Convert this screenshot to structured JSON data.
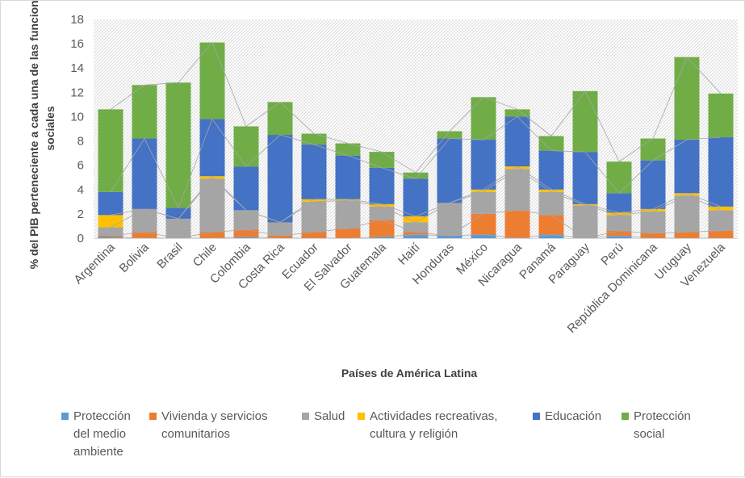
{
  "chart_data": {
    "type": "bar",
    "stacked": true,
    "title": "",
    "xlabel": "Países de América Latina",
    "ylabel": "% del PIB  perteneciente a cada una de las funciones sociales",
    "ylim": [
      0,
      18
    ],
    "yticks": [
      "0",
      "2",
      "4",
      "6",
      "8",
      "10",
      "12",
      "14",
      "16",
      "18"
    ],
    "grid": false,
    "legend_position": "bottom",
    "categories": [
      "Argentina",
      "Bolivia",
      "Brasil",
      "Chile",
      "Colombia",
      "Costa Rica",
      "Ecuador",
      "El Salvador",
      "Guatemala",
      "Haití",
      "Honduras",
      "México",
      "Nicaragua",
      "Panamá",
      "Paraguay",
      "Perú",
      "República Dominicana",
      "Uruguay",
      "Venezuela"
    ],
    "series": [
      {
        "name": "Protección del medio ambiente",
        "legend": "Protección\ndel medio\nambiente",
        "color": "#5b9bd5",
        "values": [
          0.1,
          0.0,
          0.0,
          0.0,
          0.1,
          0.0,
          0.0,
          0.0,
          0.1,
          0.3,
          0.2,
          0.3,
          0.0,
          0.3,
          0.0,
          0.2,
          0.0,
          0.0,
          0.0
        ]
      },
      {
        "name": "Vivienda y servicios comunitarios",
        "legend": "Vivienda y servicios\ncomunitarios",
        "color": "#ed7d31",
        "values": [
          0.1,
          0.5,
          0.0,
          0.5,
          0.6,
          0.2,
          0.5,
          0.8,
          1.4,
          0.2,
          0.0,
          1.7,
          2.3,
          1.6,
          0.0,
          0.4,
          0.4,
          0.5,
          0.6
        ]
      },
      {
        "name": "Salud",
        "color": "#a5a5a5",
        "legend": "Salud",
        "values": [
          0.7,
          1.9,
          1.6,
          4.4,
          1.6,
          1.1,
          2.5,
          2.3,
          1.1,
          0.8,
          2.7,
          1.8,
          3.4,
          1.9,
          2.7,
          1.3,
          1.8,
          3.0,
          1.7
        ]
      },
      {
        "name": "Actividades recreativas, cultura y religión",
        "legend": "Actividades recreativas,\ncultura y religión",
        "color": "#ffc000",
        "values": [
          1.0,
          0.0,
          0.0,
          0.2,
          0.0,
          0.0,
          0.2,
          0.1,
          0.2,
          0.5,
          0.0,
          0.2,
          0.2,
          0.2,
          0.1,
          0.2,
          0.2,
          0.2,
          0.3
        ]
      },
      {
        "name": "Educación",
        "color": "#4472c4",
        "legend": "Educación",
        "values": [
          1.9,
          5.8,
          0.9,
          4.7,
          3.6,
          7.2,
          4.5,
          3.6,
          3.0,
          3.1,
          5.3,
          4.1,
          4.1,
          3.2,
          4.3,
          1.6,
          4.0,
          4.4,
          5.7
        ]
      },
      {
        "name": "Protección social",
        "legend": "Protección\nsocial",
        "color": "#70ad47",
        "values": [
          6.8,
          4.4,
          10.3,
          6.3,
          3.3,
          2.7,
          0.9,
          1.0,
          1.3,
          0.5,
          0.6,
          3.5,
          0.6,
          1.2,
          5.0,
          2.6,
          1.8,
          6.8,
          3.6
        ]
      }
    ]
  }
}
